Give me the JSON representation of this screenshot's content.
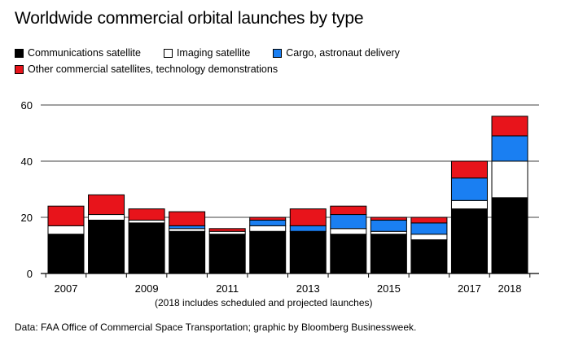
{
  "title": "Worldwide commercial orbital launches by type",
  "note": "(2018 includes scheduled and projected launches)",
  "source": "Data: FAA Office of Commercial Space Transportation; graphic by Bloomberg Businessweek.",
  "colors": {
    "communications": "#000000",
    "imaging": "#ffffff",
    "cargo": "#1a7ff2",
    "other": "#e8141b"
  },
  "chart_data": {
    "type": "bar",
    "stacked": true,
    "categories": [
      "2007",
      "2008",
      "2009",
      "2010",
      "2011",
      "2012",
      "2013",
      "2014",
      "2015",
      "2016",
      "2017",
      "2018"
    ],
    "tick_labels": [
      "2007",
      "2009",
      "2011",
      "2013",
      "2015",
      "2017",
      "2018"
    ],
    "series": [
      {
        "name": "Communications satellite",
        "key": "communications",
        "values": [
          14,
          19,
          18,
          15,
          14,
          15,
          15,
          14,
          14,
          12,
          23,
          27
        ]
      },
      {
        "name": "Imaging satellite",
        "key": "imaging",
        "values": [
          3,
          2,
          1,
          1,
          1,
          2,
          0,
          2,
          1,
          2,
          3,
          13
        ]
      },
      {
        "name": "Cargo, astronaut delivery",
        "key": "cargo",
        "values": [
          0,
          0,
          0,
          1,
          0,
          2,
          2,
          5,
          4,
          4,
          8,
          9
        ]
      },
      {
        "name": "Other commercial satellites, technology demonstrations",
        "key": "other",
        "values": [
          7,
          7,
          4,
          5,
          1,
          1,
          6,
          3,
          1,
          2,
          6,
          7
        ]
      }
    ],
    "ylim": [
      0,
      60
    ],
    "yticks": [
      0,
      20,
      40,
      60
    ],
    "grid": true,
    "legend": "top-left"
  }
}
